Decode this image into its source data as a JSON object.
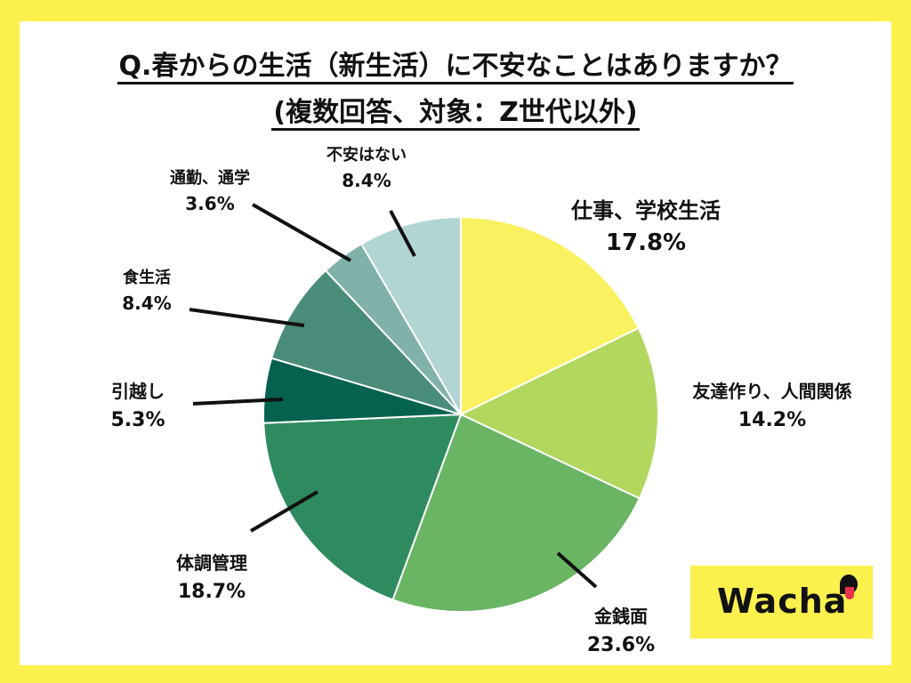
{
  "title": {
    "line1": "Q.春からの生活（新生活）に不安なことはありますか？",
    "line2": "(複数回答、対象：Z世代以外)"
  },
  "logo": {
    "text": "Wacha"
  },
  "chart_data": {
    "type": "pie",
    "title": "Q.春からの生活（新生活）に不安なことはありますか？ (複数回答、対象：Z世代以外)",
    "start_angle_deg": 0,
    "direction": "clockwise",
    "slices": [
      {
        "label": "仕事、学校生活",
        "value": 17.8,
        "value_label": "17.8%",
        "color": "#f9f160"
      },
      {
        "label": "友達作り、人間関係",
        "value": 14.2,
        "value_label": "14.2%",
        "color": "#b1d75e"
      },
      {
        "label": "金銭面",
        "value": 23.6,
        "value_label": "23.6%",
        "color": "#69b564"
      },
      {
        "label": "体調管理",
        "value": 18.7,
        "value_label": "18.7%",
        "color": "#2e8b5f"
      },
      {
        "label": "引越し",
        "value": 5.3,
        "value_label": "5.3%",
        "color": "#04624f"
      },
      {
        "label": "食生活",
        "value": 8.4,
        "value_label": "8.4%",
        "color": "#4a8c7a"
      },
      {
        "label": "通勤、通学",
        "value": 3.6,
        "value_label": "3.6%",
        "color": "#80b2aa"
      },
      {
        "label": "不安はない",
        "value": 8.4,
        "value_label": "8.4%",
        "color": "#b0d5d3"
      }
    ]
  }
}
